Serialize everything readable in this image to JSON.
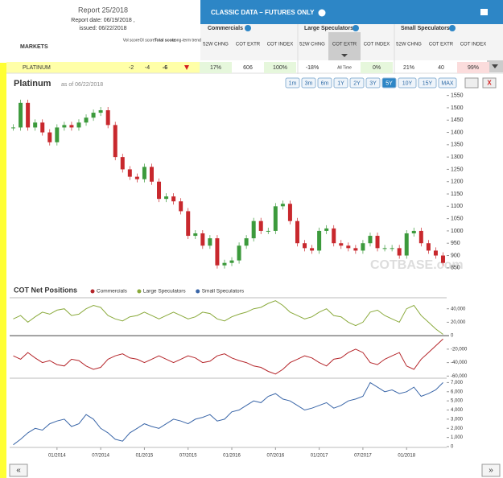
{
  "report": {
    "title": "Report 25/2018",
    "report_date": "Report date: 06/19/2018 ,",
    "issued": "issued: 06/22/2018"
  },
  "panel": {
    "title": "CLASSIC DATA – FUTURES ONLY",
    "groups": [
      "Commercials",
      "Large Speculators",
      "Small Speculators"
    ],
    "columns": [
      "52W CHNG",
      "COT EXTR",
      "COT INDEX",
      "52W CHNG",
      "COT EXTR",
      "COT INDEX",
      "52W CHNG",
      "COT EXTR",
      "COT INDEX"
    ]
  },
  "table": {
    "markets_label": "MARKETS",
    "score_headers": [
      "Vol score",
      "OI score",
      "Total score",
      "Long-term trend"
    ],
    "row": {
      "market": "PLATINUM",
      "scores": [
        -2,
        -4,
        -6
      ],
      "cells": [
        "17%",
        "606",
        "100%",
        "-18%",
        "All Time",
        "0%",
        "21%",
        "40",
        "99%"
      ]
    }
  },
  "range_buttons": [
    "1m",
    "3m",
    "6m",
    "1Y",
    "2Y",
    "3Y",
    "5Y",
    "10Y",
    "15Y",
    "MAX"
  ],
  "active_range": "5Y",
  "close_button": "X",
  "watermark": "COTBASE.com",
  "nav": {
    "prev": "«",
    "next": "»"
  },
  "chart_data": [
    {
      "type": "candlestick",
      "title": "Platinum",
      "subtitle": "as of 06/22/2018",
      "up_color": "#3c9a3c",
      "down_color": "#c8282d",
      "values": [
        1420,
        1520,
        1420,
        1440,
        1400,
        1360,
        1420,
        1430,
        1420,
        1440,
        1460,
        1480,
        1490,
        1430,
        1300,
        1250,
        1220,
        1210,
        1260,
        1200,
        1130,
        1140,
        1120,
        1080,
        980,
        990,
        940,
        970,
        860,
        870,
        880,
        940,
        970,
        1040,
        1000,
        1000,
        1100,
        1110,
        1040,
        950,
        930,
        920,
        1000,
        1010,
        950,
        940,
        930,
        920,
        950,
        980,
        930,
        930,
        930,
        900,
        990,
        1000,
        950,
        920,
        900,
        870
      ],
      "ylim": [
        820,
        1575
      ],
      "yticks": [
        850,
        900,
        950,
        1000,
        1050,
        1100,
        1150,
        1200,
        1250,
        1300,
        1350,
        1400,
        1450,
        1500,
        1550
      ]
    },
    {
      "type": "line",
      "title": "COT Net Positions",
      "x": [
        "07/2013",
        "08/2013",
        "09/2013",
        "10/2013",
        "11/2013",
        "12/2013",
        "01/2014",
        "02/2014",
        "03/2014",
        "04/2014",
        "05/2014",
        "06/2014",
        "07/2014",
        "08/2014",
        "09/2014",
        "10/2014",
        "11/2014",
        "12/2014",
        "01/2015",
        "02/2015",
        "03/2015",
        "04/2015",
        "05/2015",
        "06/2015",
        "07/2015",
        "08/2015",
        "09/2015",
        "10/2015",
        "11/2015",
        "12/2015",
        "01/2016",
        "02/2016",
        "03/2016",
        "04/2016",
        "05/2016",
        "06/2016",
        "07/2016",
        "08/2016",
        "09/2016",
        "10/2016",
        "11/2016",
        "12/2016",
        "01/2017",
        "02/2017",
        "03/2017",
        "04/2017",
        "05/2017",
        "06/2017",
        "07/2017",
        "08/2017",
        "09/2017",
        "10/2017",
        "11/2017",
        "12/2017",
        "01/2018",
        "02/2018",
        "03/2018",
        "04/2018",
        "05/2018",
        "06/2018"
      ],
      "xticks": [
        "01/2014",
        "07/2014",
        "01/2015",
        "07/2015",
        "01/2016",
        "07/2016",
        "01/2017",
        "07/2017",
        "01/2018"
      ],
      "series": [
        {
          "name": "Commercials",
          "color": "#b5262b",
          "values": [
            -30000,
            -35000,
            -25000,
            -33000,
            -40000,
            -37000,
            -43000,
            -45000,
            -35000,
            -37000,
            -45000,
            -50000,
            -47000,
            -35000,
            -30000,
            -27000,
            -33000,
            -35000,
            -40000,
            -35000,
            -30000,
            -35000,
            -40000,
            -35000,
            -30000,
            -33000,
            -40000,
            -38000,
            -30000,
            -27000,
            -33000,
            -37000,
            -40000,
            -45000,
            -47000,
            -53000,
            -57000,
            -50000,
            -40000,
            -35000,
            -30000,
            -33000,
            -40000,
            -45000,
            -35000,
            -33000,
            -25000,
            -20000,
            -25000,
            -40000,
            -43000,
            -35000,
            -30000,
            -25000,
            -45000,
            -50000,
            -35000,
            -25000,
            -15000,
            -5000
          ]
        },
        {
          "name": "Large Speculators",
          "color": "#8aaa3c",
          "values": [
            25000,
            30000,
            20000,
            28000,
            35000,
            32000,
            38000,
            40000,
            30000,
            32000,
            40000,
            45000,
            42000,
            30000,
            25000,
            22000,
            28000,
            30000,
            35000,
            30000,
            25000,
            30000,
            35000,
            30000,
            25000,
            28000,
            35000,
            33000,
            25000,
            22000,
            28000,
            32000,
            35000,
            40000,
            42000,
            48000,
            52000,
            45000,
            35000,
            30000,
            25000,
            28000,
            35000,
            40000,
            30000,
            28000,
            20000,
            15000,
            20000,
            35000,
            38000,
            30000,
            25000,
            20000,
            40000,
            45000,
            30000,
            20000,
            10000,
            2000
          ]
        },
        {
          "name": "Small Speculators",
          "color": "#3a66a8",
          "axis": "y2",
          "values": [
            200,
            800,
            1500,
            2000,
            1800,
            2500,
            2800,
            3000,
            2200,
            2500,
            3500,
            3000,
            2000,
            1500,
            800,
            600,
            1500,
            2000,
            2500,
            2200,
            2000,
            2500,
            3000,
            2800,
            2500,
            3000,
            3200,
            3500,
            2800,
            3000,
            3800,
            4000,
            4500,
            5000,
            4800,
            5500,
            5800,
            5200,
            5000,
            4500,
            4000,
            4200,
            4500,
            4800,
            4200,
            4500,
            5000,
            5200,
            5500,
            7000,
            6500,
            6000,
            6200,
            5800,
            6000,
            6500,
            5500,
            5800,
            6200,
            7000
          ]
        }
      ],
      "ylim": [
        -62000,
        54000
      ],
      "yticks": [
        {
          "value": 40000,
          "label": "40,000"
        },
        {
          "value": 20000,
          "label": "20,000"
        },
        0,
        {
          "value": -20000,
          "label": "-20,000"
        },
        {
          "value": -40000,
          "label": "-40,000"
        },
        {
          "value": -60000,
          "label": "-60,000"
        }
      ],
      "y2lim": [
        0,
        7300
      ],
      "y2ticks": [
        0,
        {
          "value": 1000,
          "label": "1,000"
        },
        {
          "value": 2000,
          "label": "2,000"
        },
        {
          "value": 3000,
          "label": "3,000"
        },
        {
          "value": 4000,
          "label": "4,000"
        },
        {
          "value": 5000,
          "label": "5,000"
        },
        {
          "value": 6000,
          "label": "6,000"
        },
        {
          "value": 7000,
          "label": "7,000"
        }
      ]
    }
  ]
}
